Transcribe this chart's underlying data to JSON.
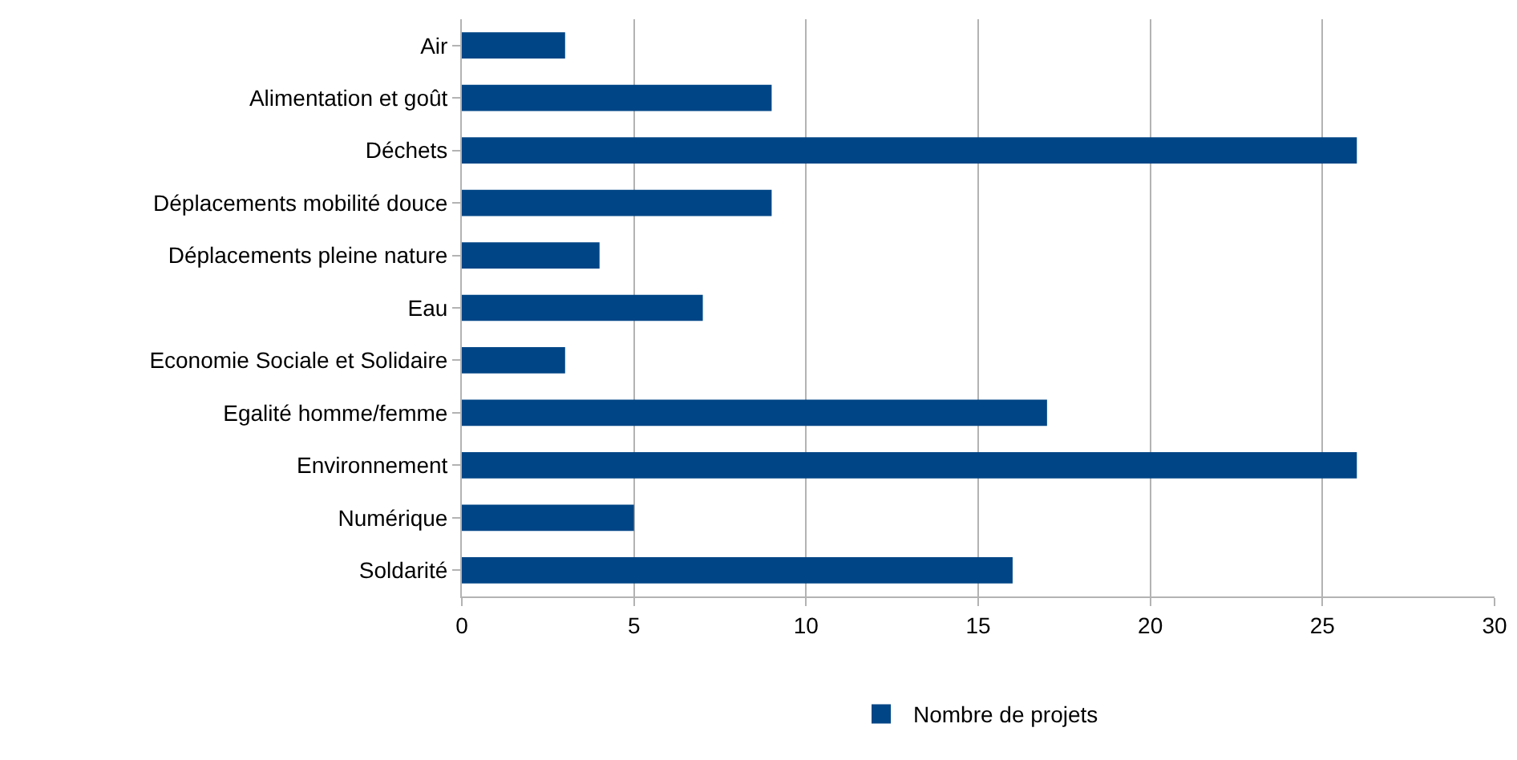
{
  "chart_data": {
    "type": "bar",
    "orientation": "horizontal",
    "categories": [
      "Air",
      "Alimentation et goût",
      "Déchets",
      "Déplacements mobilité douce",
      "Déplacements pleine nature",
      "Eau",
      "Economie Sociale et Solidaire",
      "Egalité homme/femme",
      "Environnement",
      "Numérique",
      "Soldarité"
    ],
    "series": [
      {
        "name": "Nombre de projets",
        "color": "#004586",
        "values": [
          3,
          9,
          26,
          9,
          4,
          7,
          3,
          17,
          26,
          5,
          16
        ]
      }
    ],
    "xlim": [
      0,
      30
    ],
    "xticks": [
      0,
      5,
      10,
      15,
      20,
      25,
      30
    ],
    "grid": "x",
    "legend": "bottom"
  }
}
